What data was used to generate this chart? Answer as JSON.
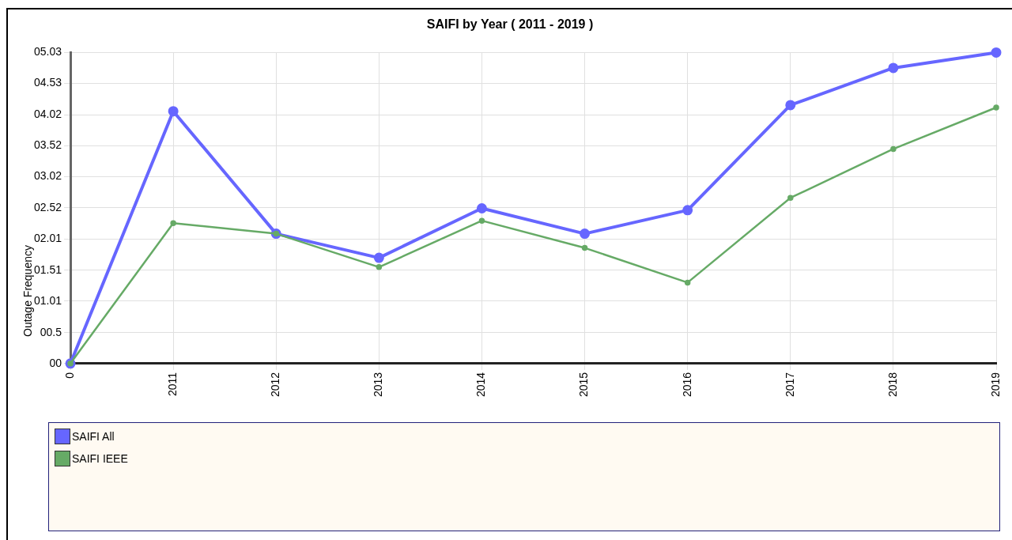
{
  "chart_data": {
    "type": "line",
    "title": "SAIFI by Year ( 2011 - 2019 )",
    "ylabel": "Outage Frequency",
    "categories": [
      "0",
      "2011",
      "2012",
      "2013",
      "2014",
      "2015",
      "2016",
      "2017",
      "2018",
      "2019"
    ],
    "series": [
      {
        "name": "SAIFI All",
        "color": "#6666ff",
        "values": [
          0,
          4.08,
          2.1,
          1.71,
          2.51,
          2.1,
          2.48,
          4.18,
          4.78,
          5.03
        ]
      },
      {
        "name": "SAIFI IEEE",
        "color": "#66aa66",
        "values": [
          0,
          2.27,
          2.1,
          1.56,
          2.31,
          1.87,
          1.31,
          2.68,
          3.47,
          4.14
        ]
      }
    ],
    "ylim": [
      0,
      5.03
    ],
    "yticks": [
      {
        "value": 0,
        "label": "00"
      },
      {
        "value": 0.5,
        "label": "00.5"
      },
      {
        "value": 1.01,
        "label": "01.01"
      },
      {
        "value": 1.51,
        "label": "01.51"
      },
      {
        "value": 2.01,
        "label": "02.01"
      },
      {
        "value": 2.52,
        "label": "02.52"
      },
      {
        "value": 3.02,
        "label": "03.02"
      },
      {
        "value": 3.52,
        "label": "03.52"
      },
      {
        "value": 4.02,
        "label": "04.02"
      },
      {
        "value": 4.53,
        "label": "04.53"
      },
      {
        "value": 5.03,
        "label": "05.03"
      }
    ],
    "grid": true,
    "legend": "bottom",
    "marker": "circle",
    "line_style": "solid"
  }
}
